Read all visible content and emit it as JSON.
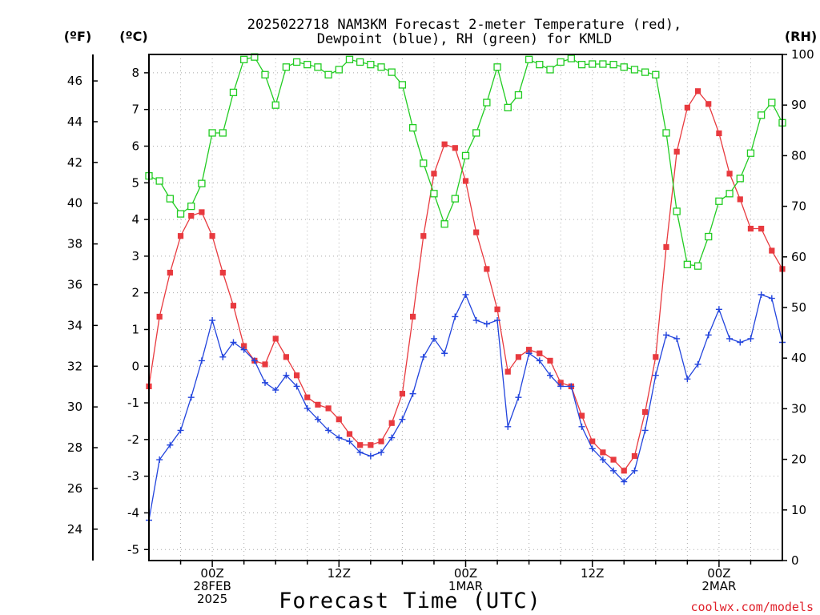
{
  "title_line1": "2025022718 NAM3KM Forecast 2-meter Temperature (red),",
  "title_line2": "Dewpoint (blue), RH (green) for KMLD",
  "unit_f": "(ºF)",
  "unit_c": "(ºC)",
  "unit_rh": "(RH)",
  "xlabel": "Forecast Time (UTC)",
  "credit": "coolwx.com/models",
  "colors": {
    "temperature": "#e83a3f",
    "dewpoint": "#2244dd",
    "rh": "#22cc22",
    "grid": "#aaaaaa"
  },
  "chart_data": {
    "type": "line",
    "title": "2025022718 NAM3KM Forecast 2-meter Temperature (red), Dewpoint (blue), RH (green) for KMLD",
    "xlabel": "Forecast Time (UTC)",
    "x_hours": [
      0,
      1,
      2,
      3,
      4,
      5,
      6,
      7,
      8,
      9,
      10,
      11,
      12,
      13,
      14,
      15,
      16,
      17,
      18,
      19,
      20,
      21,
      22,
      23,
      24,
      25,
      26,
      27,
      28,
      29,
      30,
      31,
      32,
      33,
      34,
      35,
      36,
      37,
      38,
      39,
      40,
      41,
      42,
      43,
      44,
      45,
      46,
      47,
      48,
      49,
      50,
      51,
      52,
      53,
      54,
      55,
      56,
      57,
      58,
      59,
      60
    ],
    "x_ticks": [
      {
        "hour": 6,
        "lines": [
          "00Z",
          "28FEB",
          "2025"
        ]
      },
      {
        "hour": 18,
        "lines": [
          "12Z"
        ]
      },
      {
        "hour": 30,
        "lines": [
          "00Z",
          "1MAR"
        ]
      },
      {
        "hour": 42,
        "lines": [
          "12Z"
        ]
      },
      {
        "hour": 54,
        "lines": [
          "00Z",
          "2MAR"
        ]
      }
    ],
    "y_left_c": {
      "range": [
        -5.3,
        8.5
      ],
      "ticks": [
        -5,
        -4,
        -3,
        -2,
        -1,
        0,
        1,
        2,
        3,
        4,
        5,
        6,
        7,
        8
      ]
    },
    "y_left_f": {
      "ticks": [
        24,
        26,
        28,
        30,
        32,
        34,
        36,
        38,
        40,
        42,
        44,
        46
      ]
    },
    "y_right_rh": {
      "range": [
        0,
        100
      ],
      "ticks": [
        0,
        10,
        20,
        30,
        40,
        50,
        60,
        70,
        80,
        90,
        100
      ]
    },
    "grid": true,
    "series": [
      {
        "name": "Temperature",
        "axis": "C",
        "color": "#e83a3f",
        "marker": "filled-square",
        "values": [
          -0.55,
          1.35,
          2.55,
          3.55,
          4.1,
          4.2,
          3.55,
          2.55,
          1.65,
          0.55,
          0.15,
          0.05,
          0.75,
          0.25,
          -0.25,
          -0.85,
          -1.05,
          -1.15,
          -1.45,
          -1.85,
          -2.15,
          -2.15,
          -2.05,
          -1.55,
          -0.75,
          1.35,
          3.55,
          5.25,
          6.05,
          5.95,
          5.05,
          3.65,
          2.65,
          1.55,
          -0.15,
          0.25,
          0.45,
          0.35,
          0.15,
          -0.45,
          -0.55,
          -1.35,
          -2.05,
          -2.35,
          -2.55,
          -2.85,
          -2.45,
          -1.25,
          0.25,
          3.25,
          5.85,
          7.05,
          7.5,
          7.15,
          6.35,
          5.25,
          4.55,
          3.75,
          3.75,
          3.15,
          2.65
        ]
      },
      {
        "name": "Dewpoint",
        "axis": "C",
        "color": "#2244dd",
        "marker": "plus",
        "values": [
          -4.2,
          -2.55,
          -2.15,
          -1.75,
          -0.85,
          0.15,
          1.25,
          0.25,
          0.65,
          0.45,
          0.15,
          -0.45,
          -0.65,
          -0.25,
          -0.55,
          -1.15,
          -1.45,
          -1.75,
          -1.95,
          -2.05,
          -2.35,
          -2.45,
          -2.35,
          -1.95,
          -1.45,
          -0.75,
          0.25,
          0.75,
          0.35,
          1.35,
          1.95,
          1.25,
          1.15,
          1.25,
          -1.65,
          -0.85,
          0.35,
          0.15,
          -0.25,
          -0.55,
          -0.55,
          -1.65,
          -2.25,
          -2.55,
          -2.85,
          -3.15,
          -2.85,
          -1.75,
          -0.25,
          0.85,
          0.75,
          -0.35,
          0.05,
          0.85,
          1.55,
          0.75,
          0.65,
          0.75,
          1.95,
          1.85,
          0.65
        ]
      },
      {
        "name": "RH",
        "axis": "RH",
        "color": "#22cc22",
        "marker": "open-square",
        "values": [
          76,
          75,
          71.5,
          68.5,
          70,
          74.5,
          84.5,
          84.5,
          92.5,
          99,
          99.5,
          96,
          90,
          97.5,
          98.5,
          98,
          97.5,
          96,
          97,
          99,
          98.5,
          98,
          97.5,
          96.5,
          94,
          85.5,
          78.5,
          72.5,
          66.5,
          71.5,
          80,
          84.5,
          90.5,
          97.5,
          89.5,
          92,
          99,
          98,
          97,
          98.5,
          99.2,
          98,
          98.1,
          98.1,
          98,
          97.5,
          97,
          96.5,
          96,
          84.5,
          69,
          58.5,
          58.2,
          64,
          71,
          72.5,
          75.5,
          80.5,
          88,
          90.5,
          86.5
        ]
      }
    ]
  }
}
